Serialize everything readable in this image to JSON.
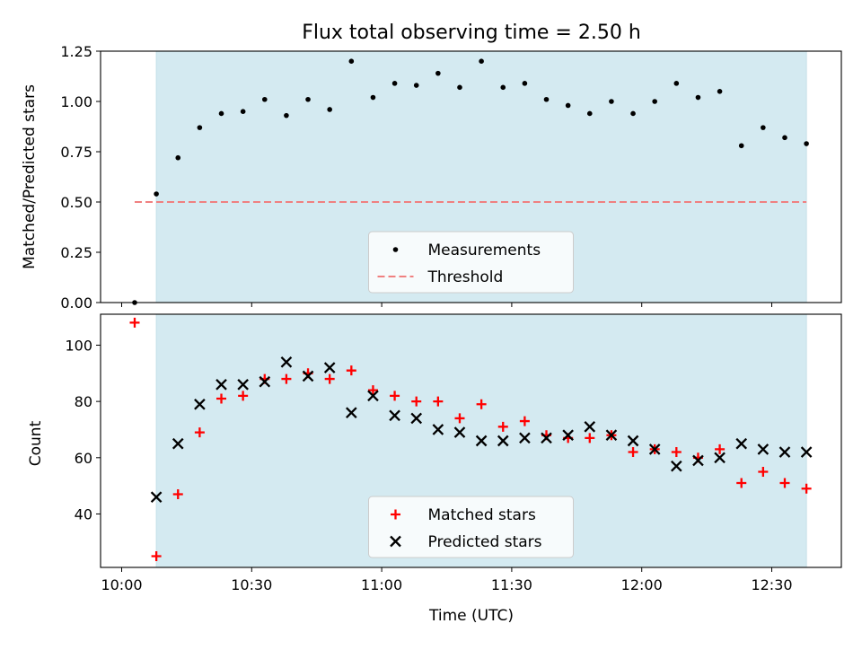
{
  "chart_data": {
    "title": "Flux total observing time = 2.50 h",
    "xlabel": "Time (UTC)",
    "x_ticks": [
      "10:00",
      "10:30",
      "11:00",
      "11:30",
      "12:00",
      "12:30"
    ],
    "colors": {
      "band": "#d4eaf1",
      "threshold": "#f08080",
      "matched": "#ff0000",
      "predicted": "#000000",
      "measurements": "#000000"
    },
    "times": [
      "10:03",
      "10:08",
      "10:13",
      "10:18",
      "10:23",
      "10:28",
      "10:33",
      "10:38",
      "10:43",
      "10:48",
      "10:53",
      "10:58",
      "11:03",
      "11:08",
      "11:13",
      "11:18",
      "11:23",
      "11:28",
      "11:33",
      "11:38",
      "11:43",
      "11:48",
      "11:53",
      "11:58",
      "12:03",
      "12:08",
      "12:13",
      "12:18",
      "12:23",
      "12:28",
      "12:33",
      "12:38"
    ],
    "observing_window": [
      "10:08",
      "12:38"
    ],
    "panels": [
      {
        "type": "scatter",
        "ylabel": "Matched/Predicted stars",
        "ylim": [
          0,
          1.25
        ],
        "y_ticks": [
          "0.00",
          "0.25",
          "0.50",
          "0.75",
          "1.00",
          "1.25"
        ],
        "series": [
          {
            "name": "Measurements",
            "marker": "dot",
            "values": [
              0.0,
              0.54,
              0.72,
              0.87,
              0.94,
              0.95,
              1.01,
              0.93,
              1.01,
              0.96,
              1.2,
              1.02,
              1.09,
              1.08,
              1.14,
              1.07,
              1.2,
              1.07,
              1.09,
              1.01,
              0.98,
              0.94,
              1.0,
              0.94,
              1.0,
              1.09,
              1.02,
              1.05,
              0.78,
              0.87,
              0.82,
              0.79
            ]
          }
        ],
        "threshold": {
          "name": "Threshold",
          "value": 0.5,
          "from": "10:03",
          "to": "12:38"
        },
        "legend": [
          "Measurements",
          "Threshold"
        ],
        "legend_position": "lower-center"
      },
      {
        "type": "scatter",
        "ylabel": "Count",
        "ylim": [
          21,
          111
        ],
        "y_ticks": [
          "40",
          "60",
          "80",
          "100"
        ],
        "series": [
          {
            "name": "Matched stars",
            "marker": "plus",
            "values": [
              108,
              25,
              47,
              69,
              81,
              82,
              88,
              88,
              90,
              88,
              91,
              84,
              82,
              80,
              80,
              74,
              79,
              71,
              73,
              68,
              67,
              67,
              68,
              62,
              63,
              62,
              60,
              63,
              51,
              55,
              51,
              49
            ]
          },
          {
            "name": "Predicted stars",
            "marker": "x",
            "values": [
              null,
              46,
              65,
              79,
              86,
              86,
              87,
              94,
              89,
              92,
              76,
              82,
              75,
              74,
              70,
              69,
              66,
              66,
              67,
              67,
              68,
              71,
              68,
              66,
              63,
              57,
              59,
              60,
              65,
              63,
              62,
              62
            ]
          }
        ],
        "legend": [
          "Matched stars",
          "Predicted stars"
        ],
        "legend_position": "lower-center"
      }
    ]
  }
}
